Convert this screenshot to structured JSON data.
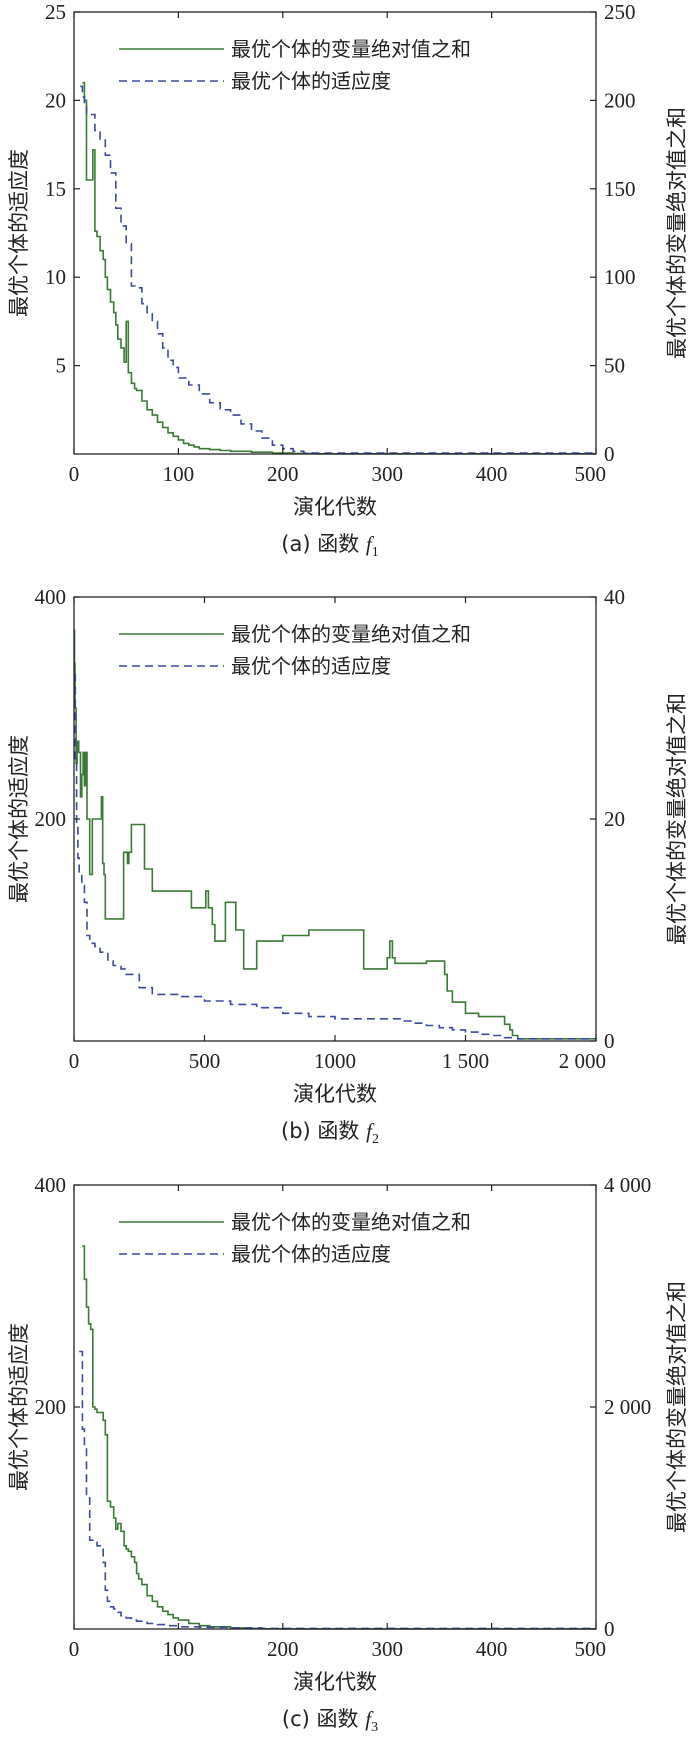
{
  "chart_data": [
    {
      "type": "line",
      "caption": {
        "prefix": "(a) 函数",
        "var": "f",
        "sub": "1"
      },
      "xlabel": "演化代数",
      "ylabel_left": "最优个体的适应度",
      "ylabel_right": "最优个体的变量绝对值之和",
      "xlim": [
        0,
        500
      ],
      "ylim_left": [
        0,
        25
      ],
      "ylim_right": [
        0,
        250
      ],
      "xticks": [
        0,
        100,
        200,
        300,
        400,
        500
      ],
      "xtick_labels": [
        "0",
        "100",
        "200",
        "300",
        "400",
        "500"
      ],
      "yticks_left": [
        5,
        10,
        15,
        20,
        25
      ],
      "yticks_left_labels": [
        "5",
        "10",
        "15",
        "20",
        "25"
      ],
      "yticks_right": [
        0,
        50,
        100,
        150,
        200,
        250
      ],
      "yticks_right_labels": [
        "0",
        "50",
        "100",
        "150",
        "200",
        "250"
      ],
      "series": [
        {
          "name": "最优个体的变量绝对值之和",
          "axis": "right",
          "style": "solid",
          "color": "#3a7a34",
          "x": [
            8,
            10,
            12,
            15,
            18,
            20,
            22,
            25,
            28,
            30,
            32,
            35,
            38,
            40,
            42,
            45,
            48,
            50,
            52,
            55,
            58,
            60,
            65,
            70,
            75,
            80,
            85,
            90,
            95,
            100,
            105,
            110,
            115,
            120,
            130,
            140,
            150,
            170,
            190,
            210,
            230,
            500
          ],
          "y": [
            210,
            200,
            155,
            155,
            172,
            126,
            123,
            115,
            110,
            100,
            93,
            86,
            80,
            73,
            65,
            60,
            52,
            75,
            46,
            40,
            37,
            36,
            30,
            25,
            22,
            18,
            15,
            12,
            10,
            8,
            6,
            5,
            4,
            3,
            2.5,
            2,
            1.5,
            1,
            0.5,
            0.3,
            0.1,
            0.1
          ]
        },
        {
          "name": "最优个体的适应度",
          "axis": "left",
          "style": "dashed",
          "color": "#3a4aa0",
          "x": [
            6,
            8,
            10,
            12,
            15,
            20,
            25,
            30,
            35,
            40,
            45,
            50,
            55,
            60,
            65,
            70,
            75,
            80,
            85,
            90,
            95,
            100,
            110,
            120,
            130,
            140,
            150,
            160,
            170,
            180,
            190,
            200,
            210,
            220,
            500
          ],
          "y": [
            20.8,
            20.2,
            19.8,
            19.2,
            19.2,
            18.3,
            17.8,
            16.9,
            15.9,
            13.9,
            12.9,
            11.9,
            9.5,
            9.4,
            8.5,
            8.0,
            7.5,
            6.8,
            6.0,
            5.3,
            4.9,
            4.3,
            3.9,
            3.4,
            2.9,
            2.5,
            2.2,
            1.7,
            1.3,
            0.9,
            0.5,
            0.3,
            0.15,
            0.05,
            0.05
          ]
        }
      ]
    },
    {
      "type": "line",
      "caption": {
        "prefix": "(b) 函数",
        "var": "f",
        "sub": "2"
      },
      "xlabel": "演化代数",
      "ylabel_left": "最优个体的适应度",
      "ylabel_right": "最优个体的变量绝对值之和",
      "xlim": [
        0,
        2000
      ],
      "ylim_left": [
        0,
        400
      ],
      "ylim_right": [
        0,
        40
      ],
      "xticks": [
        0,
        500,
        1000,
        1500,
        2000
      ],
      "xtick_labels": [
        "0",
        "500",
        "1000",
        "1 500",
        "2 000"
      ],
      "yticks_left": [
        200,
        400
      ],
      "yticks_left_labels": [
        "200",
        "400"
      ],
      "yticks_right": [
        0,
        20,
        40
      ],
      "yticks_right_labels": [
        "0",
        "20",
        "40"
      ],
      "series": [
        {
          "name": "最优个体的变量绝对值之和",
          "axis": "right",
          "style": "solid",
          "color": "#3a7a34",
          "x": [
            0,
            2,
            4,
            8,
            12,
            18,
            25,
            30,
            35,
            40,
            45,
            50,
            55,
            60,
            65,
            70,
            80,
            90,
            100,
            105,
            110,
            115,
            120,
            130,
            150,
            170,
            190,
            200,
            205,
            210,
            220,
            230,
            250,
            270,
            300,
            350,
            400,
            450,
            500,
            505,
            510,
            515,
            520,
            530,
            540,
            560,
            580,
            600,
            620,
            650,
            680,
            700,
            800,
            900,
            1000,
            1100,
            1110,
            1120,
            1150,
            1180,
            1200,
            1210,
            1220,
            1230,
            1250,
            1300,
            1350,
            1400,
            1420,
            1430,
            1450,
            1500,
            1550,
            1600,
            1650,
            1670,
            1680,
            1700,
            2000
          ],
          "y": [
            37,
            34,
            30,
            25,
            27,
            26,
            22,
            24,
            26,
            23,
            26,
            20,
            20,
            15,
            15,
            20,
            20,
            20,
            20,
            22,
            16,
            15,
            11,
            11,
            11,
            11,
            17,
            17,
            16,
            17,
            19.5,
            19.5,
            19.5,
            15.5,
            13.5,
            13.5,
            13.5,
            12,
            12,
            13.5,
            13.5,
            12,
            12,
            10.5,
            9,
            9,
            12.5,
            12.5,
            10,
            6.5,
            6.5,
            9,
            9.5,
            10,
            10,
            10,
            6.5,
            6.5,
            6.5,
            6.5,
            7.5,
            9,
            7.5,
            7,
            7,
            7,
            7.2,
            7.2,
            6,
            4.5,
            3.5,
            2.5,
            2.2,
            2.2,
            1.5,
            1,
            0.5,
            0.2,
            0.2
          ]
        },
        {
          "name": "最优个体的适应度",
          "axis": "left",
          "style": "dashed",
          "color": "#3a4aa0",
          "x": [
            0,
            5,
            10,
            15,
            20,
            30,
            40,
            50,
            60,
            80,
            100,
            130,
            150,
            180,
            200,
            250,
            300,
            400,
            500,
            600,
            700,
            800,
            900,
            1000,
            1100,
            1200,
            1250,
            1300,
            1350,
            1400,
            1450,
            1500,
            1550,
            1600,
            1650,
            1700,
            2000
          ],
          "y": [
            330,
            250,
            195,
            165,
            150,
            140,
            125,
            95,
            88,
            85,
            80,
            72,
            68,
            65,
            60,
            48,
            42,
            40,
            36,
            33,
            30,
            25,
            22,
            20,
            20,
            20,
            18,
            16,
            14,
            12,
            10,
            8,
            6,
            5,
            3,
            2,
            2
          ]
        }
      ]
    },
    {
      "type": "line",
      "caption": {
        "prefix": "(c) 函数",
        "var": "f",
        "sub": "3"
      },
      "xlabel": "演化代数",
      "ylabel_left": "最优个体的适应度",
      "ylabel_right": "最优个体的变量绝对值之和",
      "xlim": [
        0,
        500
      ],
      "ylim_left": [
        0,
        400
      ],
      "ylim_right": [
        0,
        4000
      ],
      "xticks": [
        0,
        100,
        200,
        300,
        400,
        500
      ],
      "xtick_labels": [
        "0",
        "100",
        "200",
        "300",
        "400",
        "500"
      ],
      "yticks_left": [
        200,
        400
      ],
      "yticks_left_labels": [
        "200",
        "400"
      ],
      "yticks_right": [
        0,
        2000,
        4000
      ],
      "yticks_right_labels": [
        "0",
        "2 000",
        "4 000"
      ],
      "series": [
        {
          "name": "最优个体的变量绝对值之和",
          "axis": "right",
          "style": "solid",
          "color": "#3a7a34",
          "x": [
            8,
            10,
            12,
            14,
            16,
            18,
            20,
            22,
            25,
            28,
            30,
            32,
            35,
            38,
            40,
            42,
            45,
            48,
            50,
            52,
            55,
            58,
            60,
            62,
            65,
            70,
            75,
            80,
            85,
            90,
            95,
            100,
            110,
            120,
            130,
            150,
            170,
            180,
            200,
            500
          ],
          "y": [
            3450,
            3150,
            2900,
            2750,
            2700,
            2000,
            1980,
            1950,
            1950,
            1880,
            1750,
            1150,
            1100,
            1000,
            900,
            950,
            880,
            750,
            720,
            700,
            650,
            600,
            500,
            450,
            400,
            300,
            250,
            200,
            160,
            130,
            100,
            80,
            50,
            30,
            20,
            10,
            5,
            2,
            1,
            1
          ]
        },
        {
          "name": "最优个体的适应度",
          "axis": "left",
          "style": "dashed",
          "color": "#3a4aa0",
          "x": [
            5,
            8,
            10,
            12,
            15,
            18,
            20,
            22,
            25,
            28,
            30,
            32,
            35,
            38,
            40,
            45,
            50,
            55,
            60,
            65,
            70,
            80,
            90,
            100,
            120,
            150,
            180,
            500
          ],
          "y": [
            250,
            180,
            165,
            120,
            80,
            78,
            78,
            75,
            75,
            60,
            35,
            25,
            20,
            18,
            15,
            12,
            10,
            8,
            7,
            6,
            5,
            4,
            3,
            2,
            1.5,
            1,
            0.5,
            0.5
          ]
        }
      ]
    }
  ]
}
